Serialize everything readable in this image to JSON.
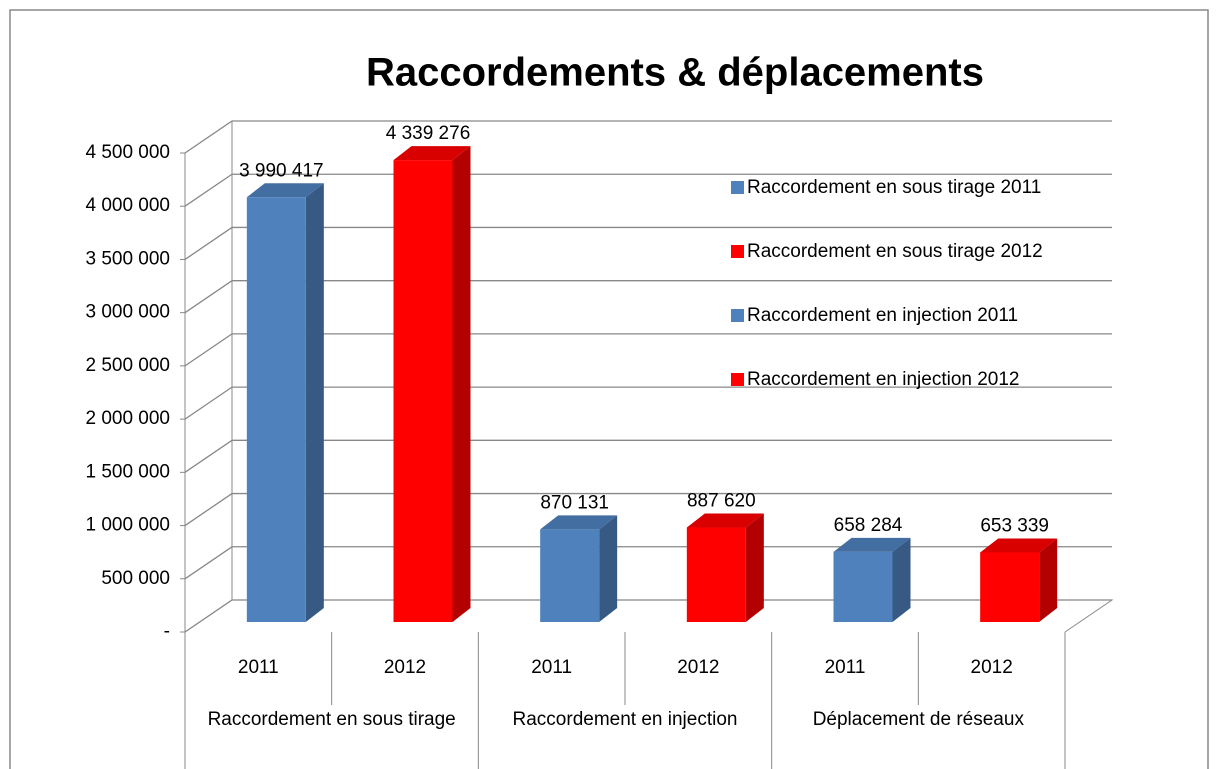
{
  "chart_data": {
    "type": "bar",
    "title": "Raccordements & déplacements",
    "categories": [
      "2011",
      "2012",
      "2011",
      "2012",
      "2011",
      "2012"
    ],
    "groups": [
      "Raccordement en sous tirage",
      "Raccordement en injection",
      "Déplacement de réseaux"
    ],
    "values": [
      3990417,
      4339276,
      870131,
      887620,
      658284,
      653339
    ],
    "value_labels": [
      "3 990 417",
      "4 339 276",
      "870 131",
      "887 620",
      "658 284",
      "653 339"
    ],
    "colors": [
      "#4f81bd",
      "#ff0000",
      "#4f81bd",
      "#ff0000",
      "#4f81bd",
      "#ff0000"
    ],
    "legend": [
      {
        "name": "Raccordement en sous tirage 2011",
        "color": "#4f81bd"
      },
      {
        "name": "Raccordement en sous tirage 2012",
        "color": "#ff0000"
      },
      {
        "name": "Raccordement en injection 2011",
        "color": "#4f81bd"
      },
      {
        "name": "Raccordement en injection 2012",
        "color": "#ff0000"
      }
    ],
    "ylim": [
      0,
      4500000
    ],
    "yticks": [
      {
        "value": 0,
        "label": "-"
      },
      {
        "value": 500000,
        "label": "500 000"
      },
      {
        "value": 1000000,
        "label": "1 000 000"
      },
      {
        "value": 1500000,
        "label": "1 500 000"
      },
      {
        "value": 2000000,
        "label": "2 000 000"
      },
      {
        "value": 2500000,
        "label": "2 500 000"
      },
      {
        "value": 3000000,
        "label": "3 000 000"
      },
      {
        "value": 3500000,
        "label": "3 500 000"
      },
      {
        "value": 4000000,
        "label": "4 000 000"
      },
      {
        "value": 4500000,
        "label": "4 500 000"
      }
    ],
    "grid": true
  }
}
